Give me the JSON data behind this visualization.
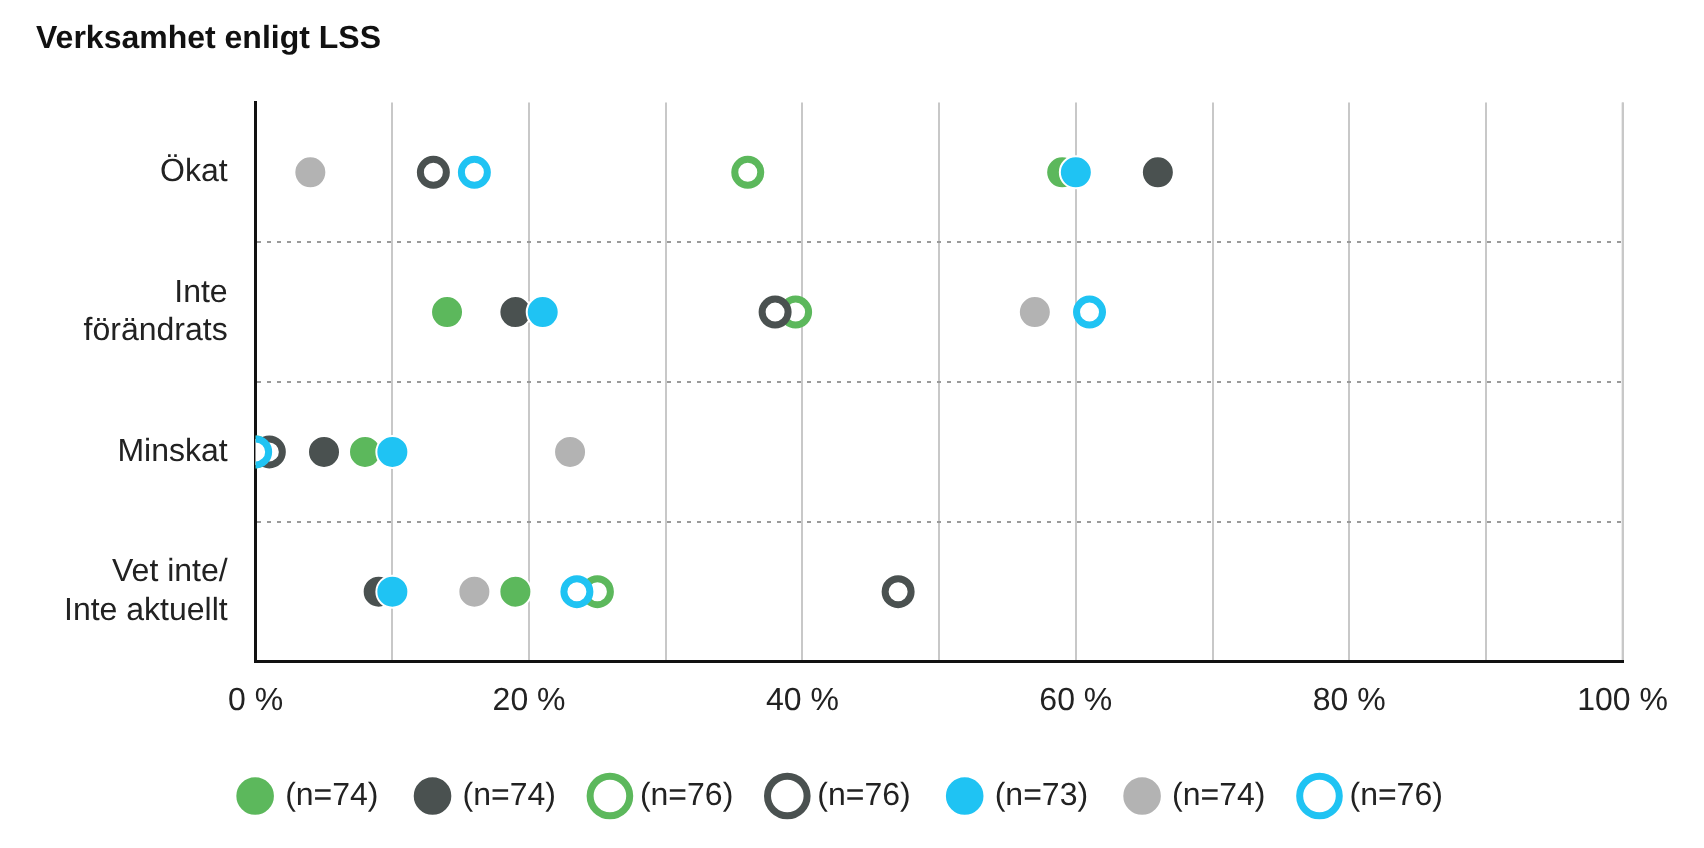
{
  "chart_data": {
    "type": "scatter",
    "title": "Verksamhet enligt LSS",
    "orientation": "horizontal",
    "categories": [
      "Ökat",
      "Inte förändrats",
      "Minskat",
      "Vet inte/ Inte aktuellt"
    ],
    "xlim": [
      0,
      100
    ],
    "xticks": [
      {
        "value": 0,
        "label": "0 %"
      },
      {
        "value": 10,
        "label": null
      },
      {
        "value": 20,
        "label": "20 %"
      },
      {
        "value": 30,
        "label": null
      },
      {
        "value": 40,
        "label": "40 %"
      },
      {
        "value": 50,
        "label": null
      },
      {
        "value": 60,
        "label": "60 %"
      },
      {
        "value": 70,
        "label": null
      },
      {
        "value": 80,
        "label": "80 %"
      },
      {
        "value": 90,
        "label": null
      },
      {
        "value": 100,
        "label": "100 %"
      }
    ],
    "grid": true,
    "legend": "bottom",
    "marker": "circle",
    "series": [
      {
        "name": "(n=74)",
        "color": "#5cb85c",
        "values": [
          59,
          14,
          8,
          19
        ]
      },
      {
        "name": "(n=74)",
        "color": "#4a5150",
        "values": [
          66,
          19,
          5,
          9
        ]
      },
      {
        "name": "(n=76)",
        "color": "#5cb85c",
        "values": [
          36,
          39.5,
          0,
          25
        ]
      },
      {
        "name": "(n=76)",
        "color": "#4a5150",
        "values": [
          13,
          38,
          1,
          47
        ]
      },
      {
        "name": "(n=73)",
        "color": "#1fc3f3",
        "values": [
          60,
          21,
          10,
          10
        ]
      },
      {
        "name": "(n=74)",
        "color": "#b3b3b3",
        "values": [
          4,
          57,
          23,
          16
        ]
      },
      {
        "name": "(n=76)",
        "color": "#1fc3f3",
        "values": [
          16,
          61,
          0,
          23.5
        ]
      }
    ]
  }
}
